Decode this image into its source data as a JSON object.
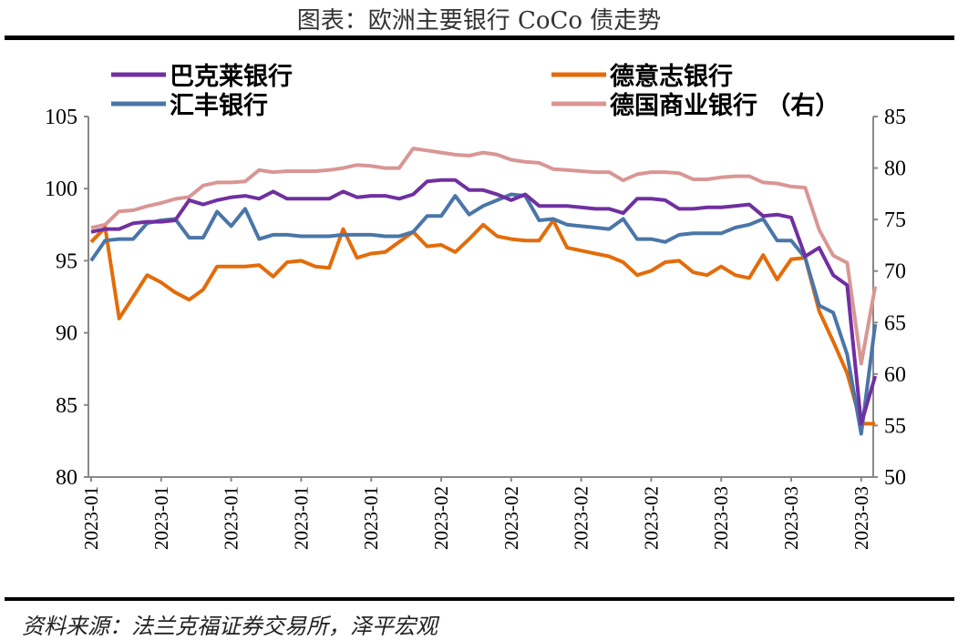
{
  "title": "图表：欧洲主要银行 CoCo 债走势",
  "source": "资料来源：法兰克福证券交易所，泽平宏观",
  "chart_data": {
    "type": "line",
    "title": "图表：欧洲主要银行 CoCo 债走势",
    "x_tick_labels": [
      "2023-01",
      "2023-01",
      "2023-01",
      "2023-01",
      "2023-01",
      "2023-02",
      "2023-02",
      "2023-02",
      "2023-02",
      "2023-03",
      "2023-03",
      "2023-03"
    ],
    "y_left": {
      "range": [
        80,
        105
      ],
      "ticks": [
        80,
        85,
        90,
        95,
        100,
        105
      ]
    },
    "y_right": {
      "range": [
        50,
        85
      ],
      "ticks": [
        50,
        55,
        60,
        65,
        70,
        75,
        80,
        85
      ]
    },
    "grid": false,
    "legend_placement": "top",
    "series": [
      {
        "name": "巴克莱银行",
        "axis": "left",
        "color": "#7030a0",
        "values": [
          97.0,
          97.2,
          97.2,
          97.6,
          97.7,
          97.7,
          97.8,
          99.2,
          98.9,
          99.2,
          99.4,
          99.5,
          99.3,
          99.8,
          99.3,
          99.3,
          99.3,
          99.3,
          99.8,
          99.4,
          99.5,
          99.5,
          99.3,
          99.6,
          100.5,
          100.6,
          100.6,
          99.9,
          99.9,
          99.6,
          99.2,
          99.6,
          98.8,
          98.8,
          98.8,
          98.7,
          98.6,
          98.6,
          98.3,
          99.3,
          99.3,
          99.2,
          98.6,
          98.6,
          98.7,
          98.7,
          98.8,
          98.9,
          98.1,
          98.2,
          98.0,
          95.3,
          95.9,
          94.0,
          93.3,
          83.7,
          87.0
        ]
      },
      {
        "name": "德意志银行",
        "axis": "left",
        "color": "#e36c0a",
        "values": [
          96.3,
          97.3,
          91.0,
          92.5,
          94.0,
          93.5,
          92.8,
          92.3,
          93.0,
          94.6,
          94.6,
          94.6,
          94.7,
          93.9,
          94.9,
          95.0,
          94.6,
          94.5,
          97.2,
          95.2,
          95.5,
          95.6,
          96.3,
          97.0,
          96.0,
          96.1,
          95.6,
          96.5,
          97.5,
          96.7,
          96.5,
          96.4,
          96.4,
          97.8,
          95.9,
          95.7,
          95.5,
          95.3,
          94.9,
          94.0,
          94.3,
          94.9,
          95.0,
          94.2,
          94.0,
          94.6,
          94.0,
          93.8,
          95.4,
          93.7,
          95.1,
          95.2,
          91.5,
          89.4,
          87.2,
          83.7,
          83.7
        ]
      },
      {
        "name": "汇丰银行",
        "axis": "left",
        "color": "#4a76a8",
        "values": [
          95.0,
          96.4,
          96.5,
          96.5,
          97.6,
          97.8,
          97.9,
          96.6,
          96.6,
          98.4,
          97.4,
          98.6,
          96.5,
          96.8,
          96.8,
          96.7,
          96.7,
          96.7,
          96.8,
          96.8,
          96.8,
          96.7,
          96.7,
          97.0,
          98.1,
          98.1,
          99.5,
          98.2,
          98.8,
          99.2,
          99.6,
          99.5,
          97.8,
          97.9,
          97.5,
          97.4,
          97.3,
          97.2,
          97.9,
          96.5,
          96.5,
          96.3,
          96.8,
          96.9,
          96.9,
          96.9,
          97.3,
          97.5,
          97.9,
          96.4,
          96.4,
          95.2,
          91.9,
          91.4,
          88.5,
          83.0,
          90.6
        ]
      },
      {
        "name": "德国商业银行 （右）",
        "axis": "right",
        "color": "#d99694",
        "values": [
          74.2,
          74.5,
          75.8,
          75.9,
          76.3,
          76.6,
          77.0,
          77.2,
          78.3,
          78.6,
          78.6,
          78.7,
          79.8,
          79.6,
          79.7,
          79.7,
          79.7,
          79.8,
          80.0,
          80.3,
          80.2,
          80.0,
          80.0,
          81.9,
          81.7,
          81.5,
          81.3,
          81.2,
          81.5,
          81.3,
          80.8,
          80.6,
          80.5,
          79.9,
          79.8,
          79.7,
          79.6,
          79.6,
          78.8,
          79.4,
          79.6,
          79.6,
          79.5,
          78.9,
          78.9,
          79.1,
          79.2,
          79.2,
          78.6,
          78.5,
          78.2,
          78.1,
          74.0,
          71.5,
          70.8,
          61.0,
          68.5
        ]
      }
    ]
  }
}
